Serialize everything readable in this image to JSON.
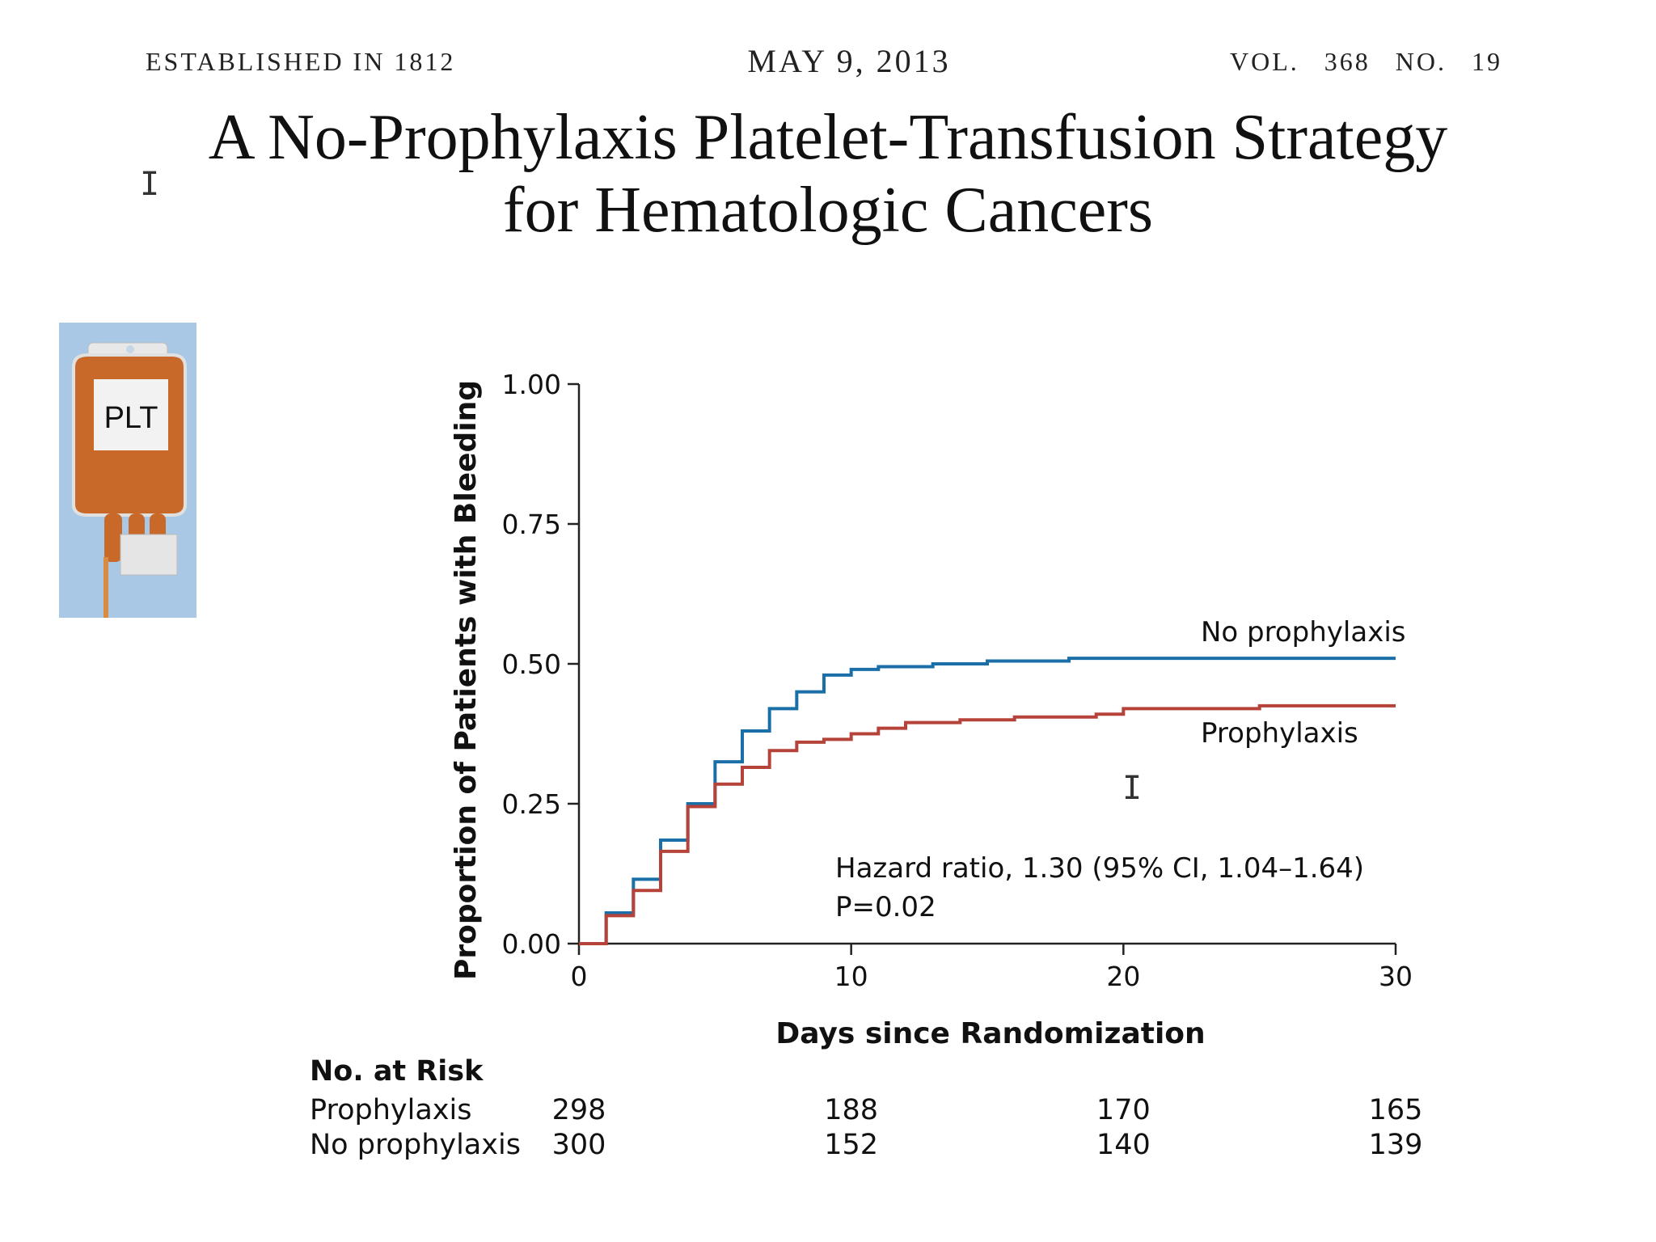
{
  "masthead": {
    "established": "ESTABLISHED IN 1812",
    "date": "MAY 9, 2013",
    "volume": "VOL. 368",
    "number": "NO. 19"
  },
  "title_line1": "A No-Prophylaxis Platelet-Transfusion Strategy",
  "title_line2": "for Hematologic Cancers",
  "bag": {
    "label": "PLT"
  },
  "chart_data": {
    "type": "line",
    "step": true,
    "xlabel": "Days since Randomization",
    "ylabel": "Proportion of Patients with Bleeding",
    "xlim": [
      0,
      30
    ],
    "ylim": [
      0,
      1
    ],
    "x_ticks": [
      "0",
      "10",
      "20",
      "30"
    ],
    "y_ticks": [
      "0.00",
      "0.25",
      "0.50",
      "0.75",
      "1.00"
    ],
    "grid": false,
    "series": [
      {
        "name": "No prophylaxis",
        "color": "#1a6fa8",
        "x": [
          0,
          1,
          2,
          3,
          4,
          5,
          6,
          7,
          8,
          9,
          10,
          11,
          13,
          15,
          18,
          30
        ],
        "y": [
          0,
          0.055,
          0.115,
          0.185,
          0.25,
          0.325,
          0.38,
          0.42,
          0.45,
          0.48,
          0.49,
          0.495,
          0.5,
          0.505,
          0.51,
          0.51
        ]
      },
      {
        "name": "Prophylaxis",
        "color": "#b5433a",
        "x": [
          0,
          1,
          2,
          3,
          4,
          5,
          6,
          7,
          8,
          9,
          10,
          11,
          12,
          14,
          16,
          19,
          20,
          25,
          30
        ],
        "y": [
          0,
          0.05,
          0.095,
          0.165,
          0.245,
          0.285,
          0.315,
          0.345,
          0.36,
          0.365,
          0.375,
          0.385,
          0.395,
          0.4,
          0.405,
          0.41,
          0.42,
          0.425,
          0.425
        ]
      }
    ],
    "annotation_line1": "Hazard ratio, 1.30 (95% CI, 1.04–1.64)",
    "annotation_line2": "P=0.02",
    "risk_table": {
      "title": "No. at Risk",
      "rows": [
        {
          "label": "Prophylaxis",
          "values": [
            "298",
            "188",
            "170",
            "165"
          ]
        },
        {
          "label": "No prophylaxis",
          "values": [
            "300",
            "152",
            "140",
            "139"
          ]
        }
      ]
    }
  }
}
